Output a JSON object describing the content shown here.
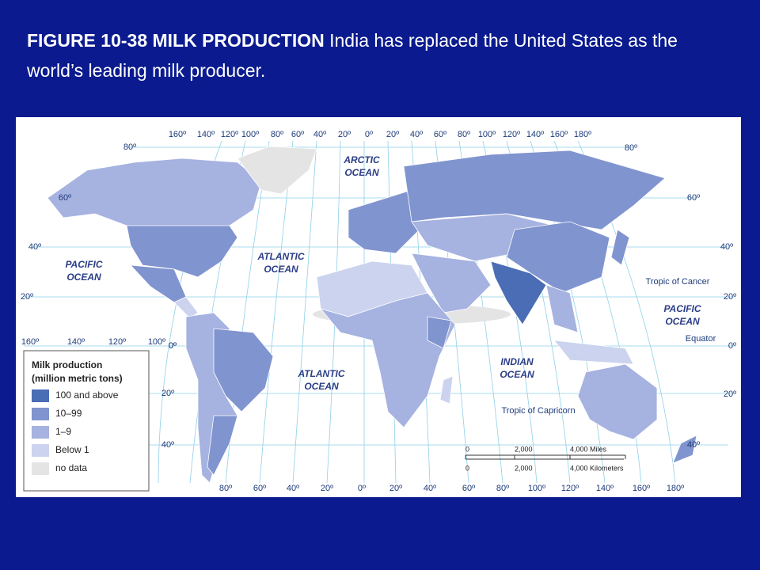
{
  "title": {
    "bold": "FIGURE 10-38 MILK PRODUCTION",
    "text": "India has replaced the United States as the world’s leading milk producer."
  },
  "map": {
    "top_longitudes": [
      "160º",
      "140º",
      "120º",
      "100º",
      "80º",
      "60º",
      "40º",
      "20º",
      "0º",
      "20º",
      "40º",
      "60º",
      "80º",
      "100º",
      "120º",
      "140º",
      "160º",
      "180º"
    ],
    "bottom_longitudes": [
      "80º",
      "60º",
      "40º",
      "20º",
      "0º",
      "20º",
      "40º",
      "60º",
      "80º",
      "100º",
      "120º",
      "140º",
      "160º",
      "180º"
    ],
    "equator_longitudes": [
      "160º",
      "140º",
      "120º",
      "100º",
      "0º"
    ],
    "left_latitudes": [
      "80º",
      "60º",
      "40º",
      "20º",
      "0º",
      "20º",
      "40º"
    ],
    "right_latitudes": [
      "80º",
      "60º",
      "40º",
      "20º",
      "0º",
      "20º",
      "40º"
    ],
    "ocean_labels": [
      {
        "lines": [
          "ARCTIC",
          "OCEAN"
        ]
      },
      {
        "lines": [
          "ATLANTIC",
          "OCEAN"
        ]
      },
      {
        "lines": [
          "PACIFIC",
          "OCEAN"
        ]
      },
      {
        "lines": [
          "PACIFIC",
          "OCEAN"
        ]
      },
      {
        "lines": [
          "ATLANTIC",
          "OCEAN"
        ]
      },
      {
        "lines": [
          "INDIAN",
          "OCEAN"
        ]
      }
    ],
    "reference_lines": [
      "Tropic of Cancer",
      "Equator",
      "Tropic of Capricorn"
    ],
    "legend": {
      "title": [
        "Milk production",
        "(million metric tons)"
      ],
      "items": [
        {
          "label": "100 and above",
          "color": "#4a6db5"
        },
        {
          "label": "10–99",
          "color": "#8094cf"
        },
        {
          "label": "1–9",
          "color": "#a6b2e0"
        },
        {
          "label": "Below 1",
          "color": "#ccd3ef"
        },
        {
          "label": "no data",
          "color": "#e4e4e4"
        }
      ]
    },
    "scale": {
      "miles": [
        "0",
        "2,000",
        "4,000 Miles"
      ],
      "kilometers": [
        "0",
        "2,000",
        "4,000 Kilometers"
      ]
    }
  }
}
